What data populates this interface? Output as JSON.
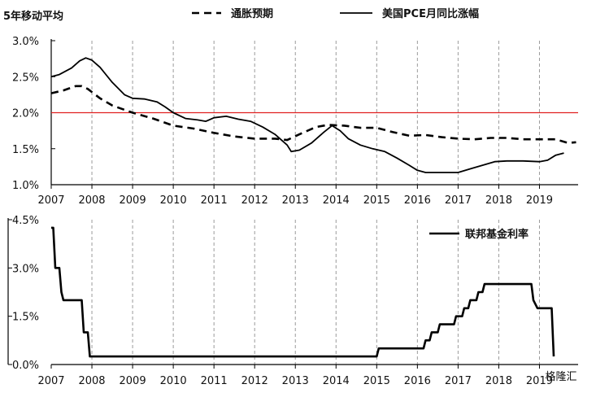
{
  "chart_data": [
    {
      "type": "line",
      "title": "5年移动平均",
      "ylim": [
        1.0,
        3.0
      ],
      "y_ticks": [
        "3.0%",
        "2.5%",
        "2.0%",
        "1.5%",
        "1.0%"
      ],
      "y_tick_values": [
        3.0,
        2.5,
        2.0,
        1.5,
        1.0
      ],
      "x_ticks": [
        "2007",
        "2008",
        "2009",
        "2010",
        "2011",
        "2012",
        "2013",
        "2014",
        "2015",
        "2016",
        "2017",
        "2018",
        "2019"
      ],
      "xlim": [
        2007.0,
        2019.95
      ],
      "grid": "vertical dashed at years",
      "legend_position": "top",
      "reference_line": {
        "y": 2.0,
        "color": "#e02020"
      },
      "series": [
        {
          "name": "通胀预期",
          "style": "dashed",
          "color": "#000000",
          "x": [
            2007.0,
            2007.3,
            2007.6,
            2007.75,
            2007.9,
            2008.2,
            2008.5,
            2009.0,
            2009.5,
            2010.0,
            2010.5,
            2011.0,
            2011.5,
            2012.0,
            2012.5,
            2012.8,
            2013.1,
            2013.5,
            2013.8,
            2014.2,
            2014.6,
            2015.0,
            2015.4,
            2015.8,
            2016.2,
            2016.6,
            2017.0,
            2017.4,
            2017.8,
            2018.2,
            2018.6,
            2019.0,
            2019.4,
            2019.7,
            2019.9
          ],
          "values": [
            2.27,
            2.31,
            2.37,
            2.37,
            2.33,
            2.2,
            2.1,
            2.0,
            1.92,
            1.82,
            1.78,
            1.72,
            1.67,
            1.64,
            1.64,
            1.62,
            1.7,
            1.8,
            1.83,
            1.82,
            1.79,
            1.79,
            1.73,
            1.68,
            1.69,
            1.66,
            1.64,
            1.63,
            1.65,
            1.65,
            1.63,
            1.63,
            1.63,
            1.58,
            1.59
          ]
        },
        {
          "name": "美国PCE月同比涨幅",
          "style": "solid",
          "color": "#000000",
          "x": [
            2007.0,
            2007.2,
            2007.5,
            2007.7,
            2007.85,
            2008.0,
            2008.2,
            2008.5,
            2008.8,
            2009.0,
            2009.3,
            2009.6,
            2009.8,
            2010.0,
            2010.3,
            2010.6,
            2010.8,
            2011.0,
            2011.3,
            2011.6,
            2011.9,
            2012.2,
            2012.5,
            2012.8,
            2012.9,
            2013.1,
            2013.4,
            2013.7,
            2013.9,
            2014.1,
            2014.3,
            2014.6,
            2014.9,
            2015.2,
            2015.5,
            2015.8,
            2016.0,
            2016.2,
            2016.6,
            2017.0,
            2017.3,
            2017.6,
            2017.9,
            2018.2,
            2018.6,
            2019.0,
            2019.2,
            2019.4,
            2019.6
          ],
          "values": [
            2.5,
            2.53,
            2.62,
            2.72,
            2.76,
            2.73,
            2.63,
            2.42,
            2.25,
            2.2,
            2.19,
            2.15,
            2.08,
            2.0,
            1.92,
            1.9,
            1.88,
            1.93,
            1.95,
            1.91,
            1.88,
            1.8,
            1.7,
            1.55,
            1.46,
            1.48,
            1.58,
            1.73,
            1.82,
            1.75,
            1.64,
            1.55,
            1.5,
            1.46,
            1.37,
            1.27,
            1.2,
            1.17,
            1.17,
            1.17,
            1.22,
            1.27,
            1.32,
            1.33,
            1.33,
            1.32,
            1.34,
            1.41,
            1.44
          ]
        }
      ]
    },
    {
      "type": "line",
      "ylim": [
        0.0,
        4.5
      ],
      "y_ticks": [
        "4.5%",
        "3.0%",
        "1.5%",
        "0.0%"
      ],
      "y_tick_values": [
        4.5,
        3.0,
        1.5,
        0.0
      ],
      "x_ticks": [
        "2007",
        "2008",
        "2009",
        "2010",
        "2011",
        "2012",
        "2013",
        "2014",
        "2015",
        "2016",
        "2017",
        "2018",
        "2019"
      ],
      "xlim": [
        2007.0,
        2019.95
      ],
      "grid": "vertical dashed at years",
      "legend_position": "top-right",
      "series": [
        {
          "name": "联邦基金利率",
          "style": "solid-step",
          "color": "#000000",
          "x": [
            2007.0,
            2007.05,
            2007.1,
            2007.15,
            2007.2,
            2007.25,
            2007.3,
            2007.4,
            2007.5,
            2007.75,
            2007.8,
            2007.85,
            2007.9,
            2007.95,
            2008.0,
            2008.05,
            2008.1,
            2008.15,
            2015.0,
            2015.05,
            2015.95,
            2016.0,
            2016.15,
            2016.2,
            2016.3,
            2016.35,
            2016.5,
            2016.55,
            2016.9,
            2016.95,
            2017.1,
            2017.15,
            2017.25,
            2017.3,
            2017.45,
            2017.5,
            2017.6,
            2017.65,
            2017.8,
            2017.85,
            2017.95,
            2018.0,
            2018.1,
            2018.15,
            2018.8,
            2018.85,
            2018.95,
            2019.3,
            2019.35
          ],
          "values": [
            4.25,
            4.25,
            3.0,
            3.0,
            3.0,
            2.25,
            2.0,
            2.0,
            2.0,
            2.0,
            1.0,
            1.0,
            1.0,
            0.25,
            0.25,
            0.25,
            0.25,
            0.25,
            0.25,
            0.5,
            0.5,
            0.5,
            0.5,
            0.75,
            0.75,
            1.0,
            1.0,
            1.25,
            1.25,
            1.5,
            1.5,
            1.75,
            1.75,
            2.0,
            2.0,
            2.25,
            2.25,
            2.5,
            2.5,
            2.5,
            2.5,
            2.5,
            2.5,
            2.5,
            2.5,
            2.0,
            1.75,
            1.75,
            0.25
          ]
        }
      ]
    }
  ],
  "watermark": "格隆汇"
}
